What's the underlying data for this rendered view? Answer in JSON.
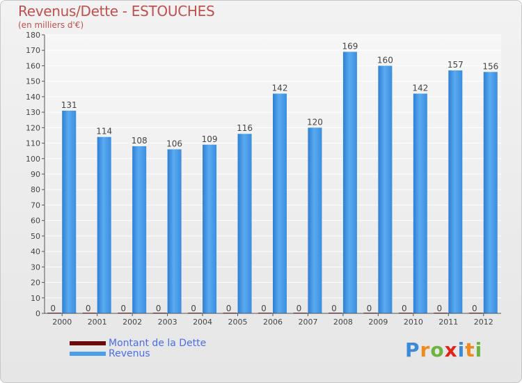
{
  "title": "Revenus/Dette - ESTOUCHES",
  "subtitle": "(en milliers d'€)",
  "colors": {
    "title": "#c0504d",
    "revenus": "#4d9ee8",
    "dette": "#6b0a0a",
    "legend_text": "#4a6ee8"
  },
  "legend": [
    {
      "label": "Montant de la Dette",
      "color": "#6b0a0a"
    },
    {
      "label": "Revenus",
      "color": "#4d9ee8"
    }
  ],
  "logo": {
    "letters": [
      "P",
      "r",
      "o",
      "x",
      "i",
      "t",
      "i"
    ],
    "colors": [
      "#3a8ad8",
      "#f08a1c",
      "#6cb33f",
      "#e2231a",
      "#3a8ad8",
      "#f08a1c",
      "#6cb33f"
    ]
  },
  "chart_data": {
    "type": "bar",
    "title": "Revenus/Dette - ESTOUCHES",
    "ylabel": "(en milliers d'€)",
    "xlabel": "",
    "ylim": [
      0,
      180
    ],
    "yticks": [
      0,
      10,
      20,
      30,
      40,
      50,
      60,
      70,
      80,
      90,
      100,
      110,
      120,
      130,
      140,
      150,
      160,
      170,
      180
    ],
    "grid": true,
    "legend_position": "bottom-left",
    "categories": [
      "2000",
      "2001",
      "2002",
      "2003",
      "2004",
      "2005",
      "2006",
      "2007",
      "2008",
      "2009",
      "2010",
      "2011",
      "2012"
    ],
    "series": [
      {
        "name": "Montant de la Dette",
        "values": [
          0,
          0,
          0,
          0,
          0,
          0,
          0,
          0,
          0,
          0,
          0,
          0,
          0
        ]
      },
      {
        "name": "Revenus",
        "values": [
          131,
          114,
          108,
          106,
          109,
          116,
          142,
          120,
          169,
          160,
          142,
          157,
          156
        ]
      }
    ]
  }
}
